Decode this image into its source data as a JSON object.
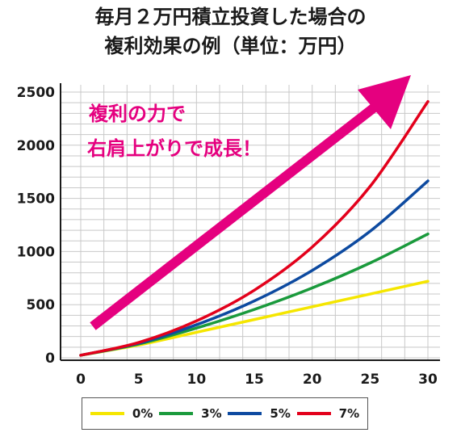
{
  "title_line1": "毎月２万円積立投資した場合の",
  "title_line2": "複利効果の例（単位：万円）",
  "annotation_line1": "複利の力で",
  "annotation_line2": "右肩上がりで成長！",
  "colors": {
    "arrow": "#e5007f",
    "grid": "#c8c8c8",
    "axis": "#1a1a1a"
  },
  "chart_data": {
    "type": "line",
    "x": [
      0,
      5,
      10,
      15,
      20,
      25,
      30
    ],
    "xticks": [
      "0",
      "5",
      "10",
      "15",
      "20",
      "25",
      "30"
    ],
    "yticks": [
      "0",
      "500",
      "1000",
      "1500",
      "2000",
      "2500"
    ],
    "xlim": [
      0,
      30
    ],
    "ylim": [
      0,
      2500
    ],
    "grid": true,
    "legend_position": "bottom",
    "series": [
      {
        "name": "0%",
        "color": "#f5e600",
        "values": [
          24,
          120,
          240,
          360,
          480,
          600,
          720
        ]
      },
      {
        "name": "3%",
        "color": "#1a9a3c",
        "values": [
          24,
          130,
          280,
          455,
          657,
          892,
          1165
        ]
      },
      {
        "name": "5%",
        "color": "#0d4aa0",
        "values": [
          24,
          137,
          311,
          535,
          822,
          1190,
          1664
        ]
      },
      {
        "name": "7%",
        "color": "#e3001b",
        "values": [
          24,
          144,
          347,
          636,
          1042,
          1612,
          2411
        ]
      }
    ]
  }
}
